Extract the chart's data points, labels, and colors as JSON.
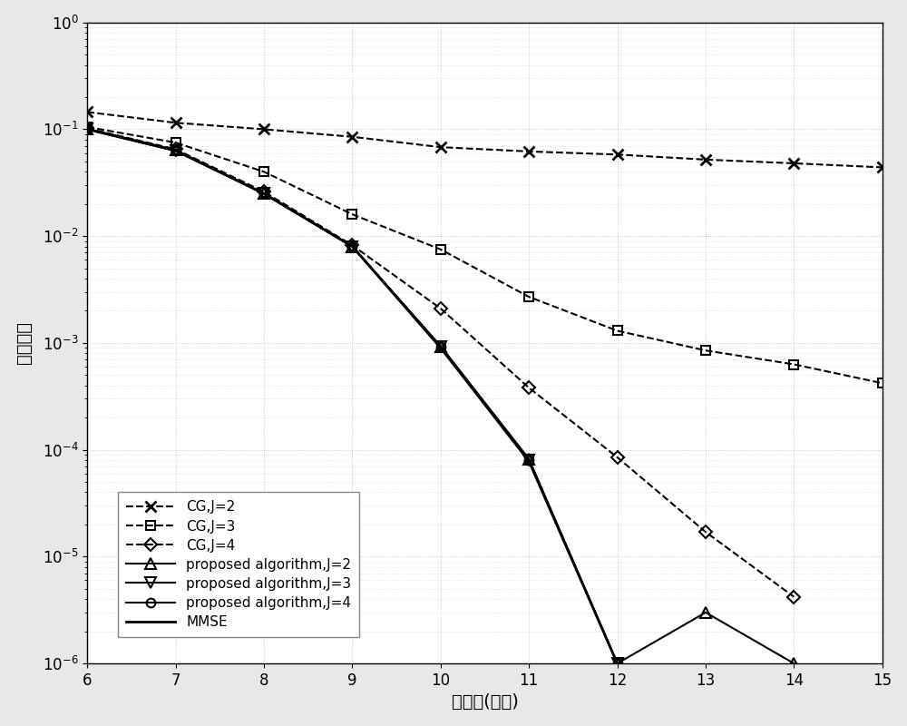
{
  "x": [
    6,
    7,
    8,
    9,
    10,
    11,
    12,
    13,
    14,
    15
  ],
  "cg_j2": [
    0.145,
    0.115,
    0.1,
    0.085,
    0.068,
    0.062,
    0.058,
    0.052,
    0.048,
    0.044
  ],
  "cg_j3": [
    0.105,
    0.075,
    0.04,
    0.016,
    0.0075,
    0.0027,
    0.0013,
    0.00085,
    0.00063,
    0.00042
  ],
  "cg_j4": [
    0.102,
    0.065,
    0.026,
    0.0082,
    0.0021,
    0.00038,
    8.5e-05,
    1.7e-05,
    4.2e-06,
    null
  ],
  "prop_j2": [
    0.101,
    0.064,
    0.025,
    0.008,
    0.00093,
    8.2e-05,
    1e-06,
    3e-06,
    1e-06,
    null
  ],
  "prop_j3": [
    0.1,
    0.063,
    0.025,
    0.008,
    0.00093,
    8e-05,
    1e-06,
    null,
    null,
    null
  ],
  "prop_j4": [
    0.1,
    0.063,
    0.025,
    0.008,
    0.00093,
    8e-05,
    1e-06,
    null,
    null,
    null
  ],
  "mmse": [
    0.1,
    0.063,
    0.025,
    0.008,
    0.0009,
    7.8e-05,
    1e-06,
    null,
    null,
    null
  ],
  "xlabel": "信噪比(分贝)",
  "ylabel": "误比特率",
  "legend_labels": [
    "CG,J=2",
    "CG,J=3",
    "CG,J=4",
    "proposed algorithm,J=2",
    "proposed algorithm,J=3",
    "proposed algorithm,J=4",
    "MMSE"
  ],
  "bg_color": "#ffffff",
  "fig_bg_color": "#e8e8e8",
  "grid_color": "#c0c0c0"
}
